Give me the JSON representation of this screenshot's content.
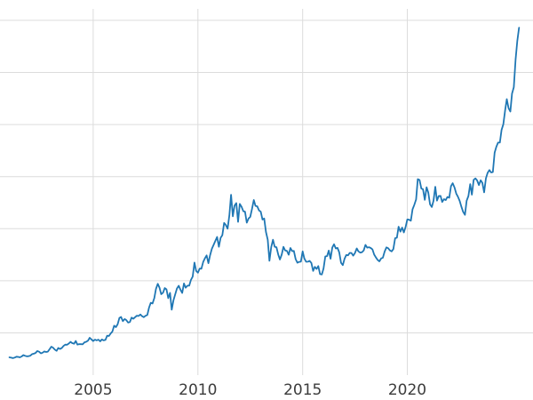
{
  "chart_data": {
    "type": "line",
    "title": "",
    "xlabel": "",
    "ylabel": "",
    "x_ticks": [
      {
        "value": 2005,
        "label": "2005"
      },
      {
        "value": 2010,
        "label": "2010"
      },
      {
        "value": 2015,
        "label": "2015"
      },
      {
        "value": 2020,
        "label": "2020"
      }
    ],
    "y_gridlines": [
      500,
      1000,
      1500,
      2000,
      2500,
      3000,
      3500
    ],
    "xlim": [
      2000.55,
      2026.0
    ],
    "ylim": [
      95,
      3610
    ],
    "x_start_year": 2001.0,
    "points_per_year": 12,
    "values": [
      266,
      262,
      258,
      263,
      272,
      270,
      266,
      274,
      287,
      280,
      275,
      277,
      282,
      296,
      301,
      308,
      326,
      319,
      304,
      310,
      322,
      317,
      320,
      343,
      368,
      359,
      340,
      328,
      355,
      346,
      354,
      375,
      388,
      386,
      398,
      414,
      402,
      396,
      423,
      388,
      393,
      392,
      391,
      410,
      415,
      425,
      453,
      438,
      422,
      435,
      429,
      435,
      419,
      437,
      429,
      433,
      473,
      470,
      495,
      513,
      569,
      556,
      582,
      644,
      653,
      613,
      633,
      623,
      599,
      604,
      647,
      636,
      651,
      665,
      662,
      677,
      661,
      651,
      665,
      672,
      743,
      789,
      783,
      834,
      923,
      971,
      933,
      871,
      886,
      930,
      918,
      833,
      884,
      723,
      814,
      870,
      927,
      952,
      916,
      883,
      975,
      934,
      953,
      953,
      1008,
      1040,
      1175,
      1096,
      1078,
      1118,
      1116,
      1180,
      1215,
      1244,
      1169,
      1246,
      1307,
      1346,
      1383,
      1421,
      1327,
      1411,
      1439,
      1556,
      1536,
      1500,
      1628,
      1826,
      1620,
      1722,
      1746,
      1566,
      1738,
      1711,
      1668,
      1664,
      1558,
      1598,
      1614,
      1691,
      1776,
      1719,
      1715,
      1675,
      1664,
      1588,
      1598,
      1469,
      1394,
      1192,
      1323,
      1394,
      1327,
      1323,
      1253,
      1205,
      1251,
      1326,
      1291,
      1288,
      1250,
      1315,
      1285,
      1287,
      1208,
      1173,
      1182,
      1184,
      1283,
      1214,
      1183,
      1184,
      1191,
      1172,
      1095,
      1134,
      1114,
      1142,
      1064,
      1061,
      1118,
      1234,
      1237,
      1290,
      1212,
      1320,
      1351,
      1311,
      1316,
      1272,
      1173,
      1150,
      1210,
      1248,
      1244,
      1268,
      1266,
      1242,
      1267,
      1311,
      1283,
      1271,
      1275,
      1291,
      1345,
      1318,
      1323,
      1315,
      1301,
      1252,
      1224,
      1201,
      1187,
      1215,
      1222,
      1281,
      1321,
      1313,
      1292,
      1283,
      1305,
      1409,
      1414,
      1520,
      1472,
      1511,
      1464,
      1517,
      1589,
      1586,
      1577,
      1686,
      1730,
      1781,
      1976,
      1967,
      1886,
      1878,
      1777,
      1898,
      1848,
      1734,
      1708,
      1768,
      1903,
      1770,
      1814,
      1815,
      1757,
      1784,
      1775,
      1806,
      1797,
      1909,
      1937,
      1897,
      1837,
      1807,
      1766,
      1711,
      1661,
      1633,
      1769,
      1814,
      1928,
      1827,
      1969,
      1983,
      1963,
      1919,
      1965,
      1940,
      1849,
      1984,
      2036,
      2063,
      2040,
      2044,
      2230,
      2286,
      2327,
      2327,
      2448,
      2503,
      2635,
      2744,
      2657,
      2625,
      2798,
      2858,
      3124,
      3300,
      3430
    ],
    "line_color": "#1f77b4",
    "grid_color": "#dcdcdc",
    "background_color": "#ffffff",
    "tick_label_color": "#3c3c3c"
  }
}
